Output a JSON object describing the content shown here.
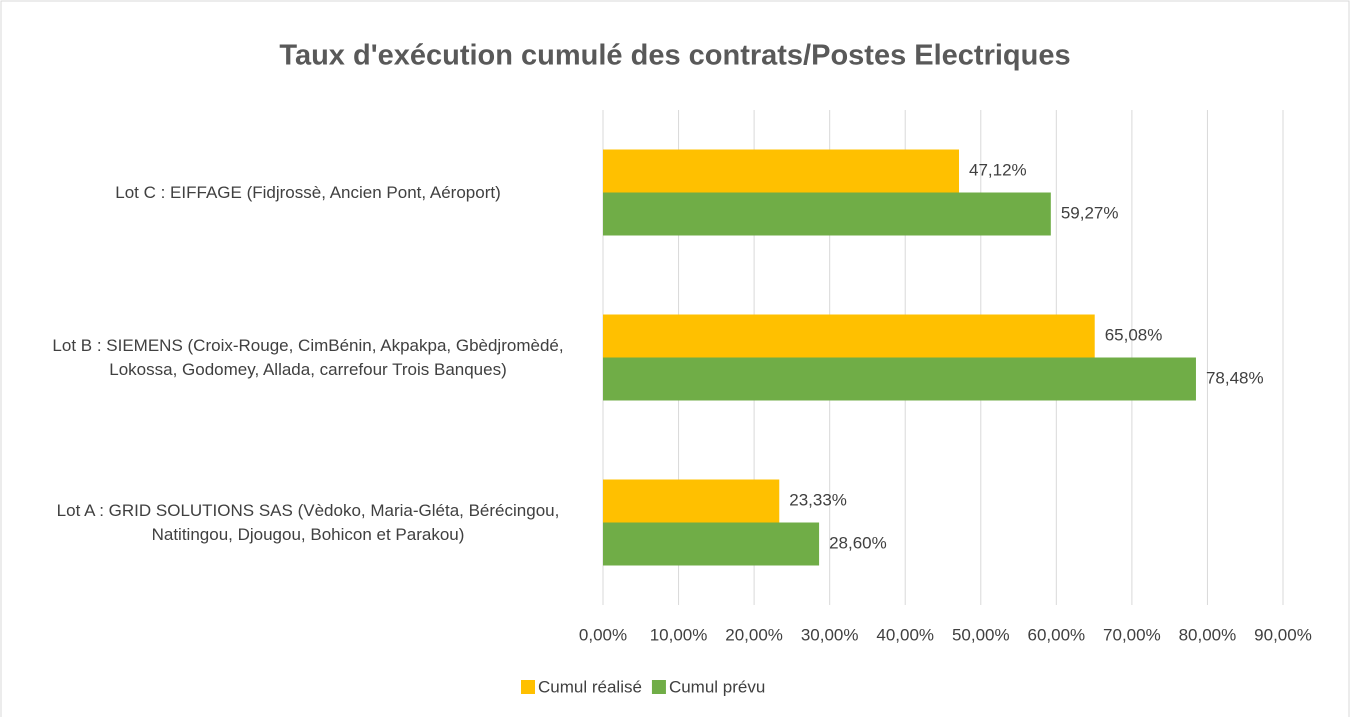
{
  "chart_data": {
    "type": "hbar",
    "title": "Taux d'exécution cumulé des contrats/Postes Electriques",
    "categories": [
      "Lot C : EIFFAGE (Fidjrossè, Ancien Pont, Aéroport)",
      "Lot B : SIEMENS (Croix-Rouge, CimBénin, Akpakpa, Gbèdjromèdé, Lokossa, Godomey, Allada, carrefour Trois Banques)",
      "Lot A : GRID SOLUTIONS SAS (Vèdoko, Maria-Gléta, Bérécingou, Natitingou, Djougou, Bohicon et Parakou)"
    ],
    "series": [
      {
        "name": "Cumul réalisé",
        "color": "#FFC000",
        "values": [
          47.12,
          65.08,
          23.33
        ],
        "value_labels": [
          "47,12%",
          "65,08%",
          "23,33%"
        ]
      },
      {
        "name": "Cumul prévu",
        "color": "#70AD47",
        "values": [
          59.27,
          78.48,
          28.6
        ],
        "value_labels": [
          "59,27%",
          "78,48%",
          "28,60%"
        ]
      }
    ],
    "xlim": [
      0,
      90
    ],
    "xticks": [
      {
        "value": 0,
        "label": "0,00%"
      },
      {
        "value": 10,
        "label": "10,00%"
      },
      {
        "value": 20,
        "label": "20,00%"
      },
      {
        "value": 30,
        "label": "30,00%"
      },
      {
        "value": 40,
        "label": "40,00%"
      },
      {
        "value": 50,
        "label": "50,00%"
      },
      {
        "value": 60,
        "label": "60,00%"
      },
      {
        "value": 70,
        "label": "70,00%"
      },
      {
        "value": 80,
        "label": "80,00%"
      },
      {
        "value": 90,
        "label": "90,00%"
      }
    ],
    "grid": true,
    "legend": "bottom"
  }
}
